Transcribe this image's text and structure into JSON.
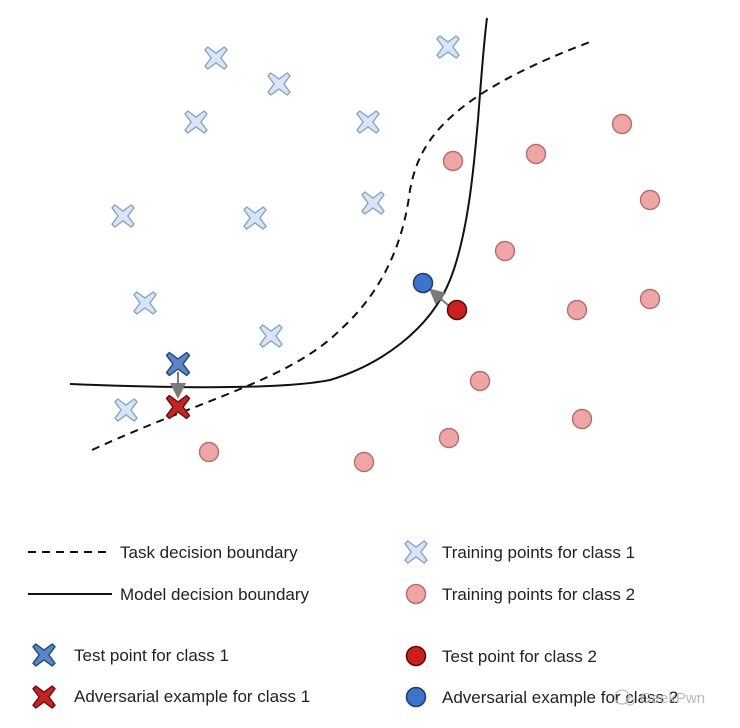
{
  "colors": {
    "class1_light": "#d6e6f6",
    "class1_stroke": "#8aa4bd",
    "class1_test": "#5a86c5",
    "class1_test_stroke": "#24487a",
    "adv1": "#c02525",
    "adv1_stroke": "#6e0d0d",
    "class2_light": "#efa5a5",
    "class2_stroke": "#b36f6f",
    "class2_test": "#cc1f1f",
    "class2_test_stroke": "#5c0a0a",
    "adv2": "#3d73c9",
    "adv2_stroke": "#1d3d70",
    "arrow": "#7a7a7a",
    "boundary": "#111111"
  },
  "legend": {
    "task_boundary": "Task decision boundary",
    "model_boundary": "Model decision boundary",
    "train_class1": "Training points for class 1",
    "train_class2": "Training points for class 2",
    "test_class1": "Test point for class 1",
    "test_class2": "Test point for class 2",
    "adv_class1": "Adversarial example for class 1",
    "adv_class2": "Adversarial example for class 2"
  },
  "watermark": {
    "text": "GeekPwn"
  }
}
